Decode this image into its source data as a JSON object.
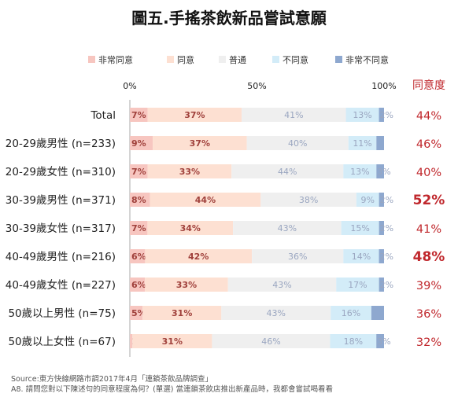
{
  "chart_data": {
    "type": "bar",
    "stacked": true,
    "orientation": "horizontal",
    "title": "圖五.手搖茶飲新品嘗試意願",
    "categories": [
      "Total",
      "20-29歲男性 (n=233)",
      "20-29歲女性 (n=310)",
      "30-39歲男性 (n=371)",
      "30-39歲女性 (n=317)",
      "40-49歲男性 (n=216)",
      "40-49歲女性 (n=227)",
      "50歲以上男性 (n=75)",
      "50歲以上女性 (n=67)"
    ],
    "series": [
      {
        "name": "非常同意",
        "color": "#f7c6c0",
        "values": [
          7,
          9,
          7,
          8,
          7,
          6,
          6,
          5,
          1
        ],
        "labels": [
          "7%",
          "9%",
          "7%",
          "8%",
          "7%",
          "6%",
          "6%",
          "5%",
          "1%"
        ]
      },
      {
        "name": "同意",
        "color": "#fde0d2",
        "values": [
          37,
          37,
          33,
          44,
          34,
          42,
          33,
          31,
          31
        ],
        "labels": [
          "37%",
          "37%",
          "33%",
          "44%",
          "34%",
          "42%",
          "33%",
          "31%",
          "31%"
        ]
      },
      {
        "name": "普通",
        "color": "#efefef",
        "values": [
          41,
          40,
          44,
          38,
          43,
          36,
          43,
          43,
          46
        ],
        "labels": [
          "41%",
          "40%",
          "44%",
          "38%",
          "43%",
          "36%",
          "43%",
          "43%",
          "46%"
        ]
      },
      {
        "name": "不同意",
        "color": "#d3ecf8",
        "values": [
          13,
          11,
          13,
          9,
          15,
          14,
          17,
          16,
          18
        ],
        "labels": [
          "13%",
          "11%",
          "13%",
          "9%",
          "15%",
          "14%",
          "17%",
          "16%",
          "18%"
        ]
      },
      {
        "name": "非常不同意",
        "color": "#8ea8cf",
        "values": [
          2,
          3,
          3,
          2,
          2,
          2,
          2,
          5,
          3
        ],
        "labels": [
          "2%",
          "",
          "3%",
          "2%",
          "2%",
          "2%",
          "2%",
          "",
          "3%"
        ]
      }
    ],
    "xlim": [
      0,
      100
    ],
    "xticks": [
      "0%",
      "50%",
      "100%"
    ],
    "agree_header": "同意度",
    "agree_values": [
      "44%",
      "46%",
      "40%",
      "52%",
      "41%",
      "48%",
      "39%",
      "36%",
      "32%"
    ],
    "agree_highlight": [
      false,
      false,
      false,
      true,
      false,
      true,
      false,
      false,
      false
    ],
    "legend_position": "top",
    "grid": false
  },
  "footer": {
    "source": "Source:東方快線網路市調2017年4月「連鎖茶飲品牌調查」",
    "question": "A8. 請問您對以下陳述句的同意程度為何？(單選)  當連鎖茶飲店推出新產品時，我都會嘗試喝看看"
  },
  "colors": {
    "agree_text": "#c0282d",
    "segment_text_warm": "#a0413c",
    "segment_text_cool": "#9aa6c0",
    "axis_text": "#222222"
  }
}
